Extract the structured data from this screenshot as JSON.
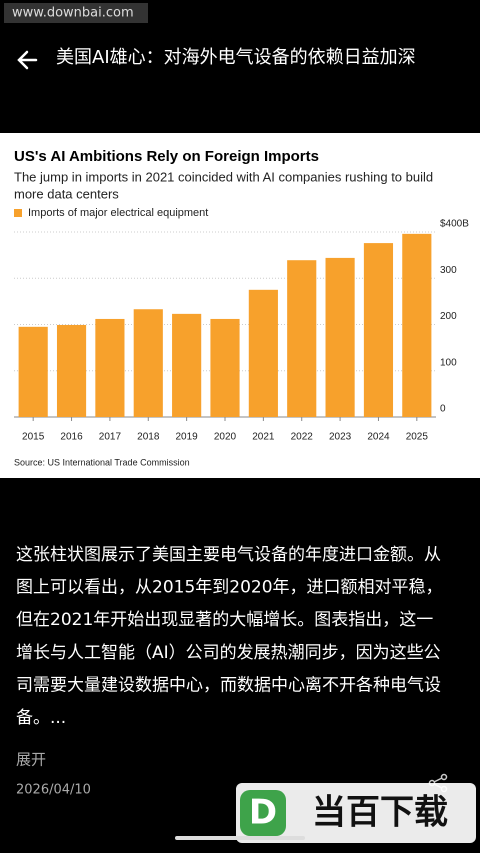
{
  "watermark": "www.downbai.com",
  "header": {
    "title": "美国AI雄心：对海外电气设备的依赖日益加深"
  },
  "chart_data": {
    "type": "bar",
    "title": "US's AI Ambitions Rely on Foreign Imports",
    "subtitle": [
      "The jump in imports in 2021 coincided with AI companies rushing to build",
      "more data centers"
    ],
    "categories": [
      "2015",
      "2016",
      "2017",
      "2018",
      "2019",
      "2020",
      "2021",
      "2022",
      "2023",
      "2024",
      "2025"
    ],
    "series": [
      {
        "name": "Imports of major electrical equipment",
        "color": "#f7a12c",
        "values": [
          195,
          199,
          212,
          233,
          223,
          212,
          275,
          339,
          344,
          376,
          396
        ]
      }
    ],
    "ylim": [
      0,
      400
    ],
    "yticks": [
      0,
      100,
      200,
      300,
      {
        "value": 400,
        "label": "$400B"
      }
    ],
    "grid": true,
    "source": "Source: US International Trade Commission"
  },
  "post": {
    "lines": [
      "这张柱状图展示了美国主要电气设备的年度进口金额。从",
      "图上可以看出，从2015年到2020年，进口额相对平稳，",
      "但在2021年开始出现显著的大幅增长。图表指出，这一",
      "增长与人工智能（AI）公司的发展热潮同步，因为这些公",
      "司需要大量建设数据中心，而数据中心离不开各种电气设",
      "备。..."
    ],
    "expand": "展开",
    "date": "2026/04/10"
  },
  "logo": "当百下载"
}
